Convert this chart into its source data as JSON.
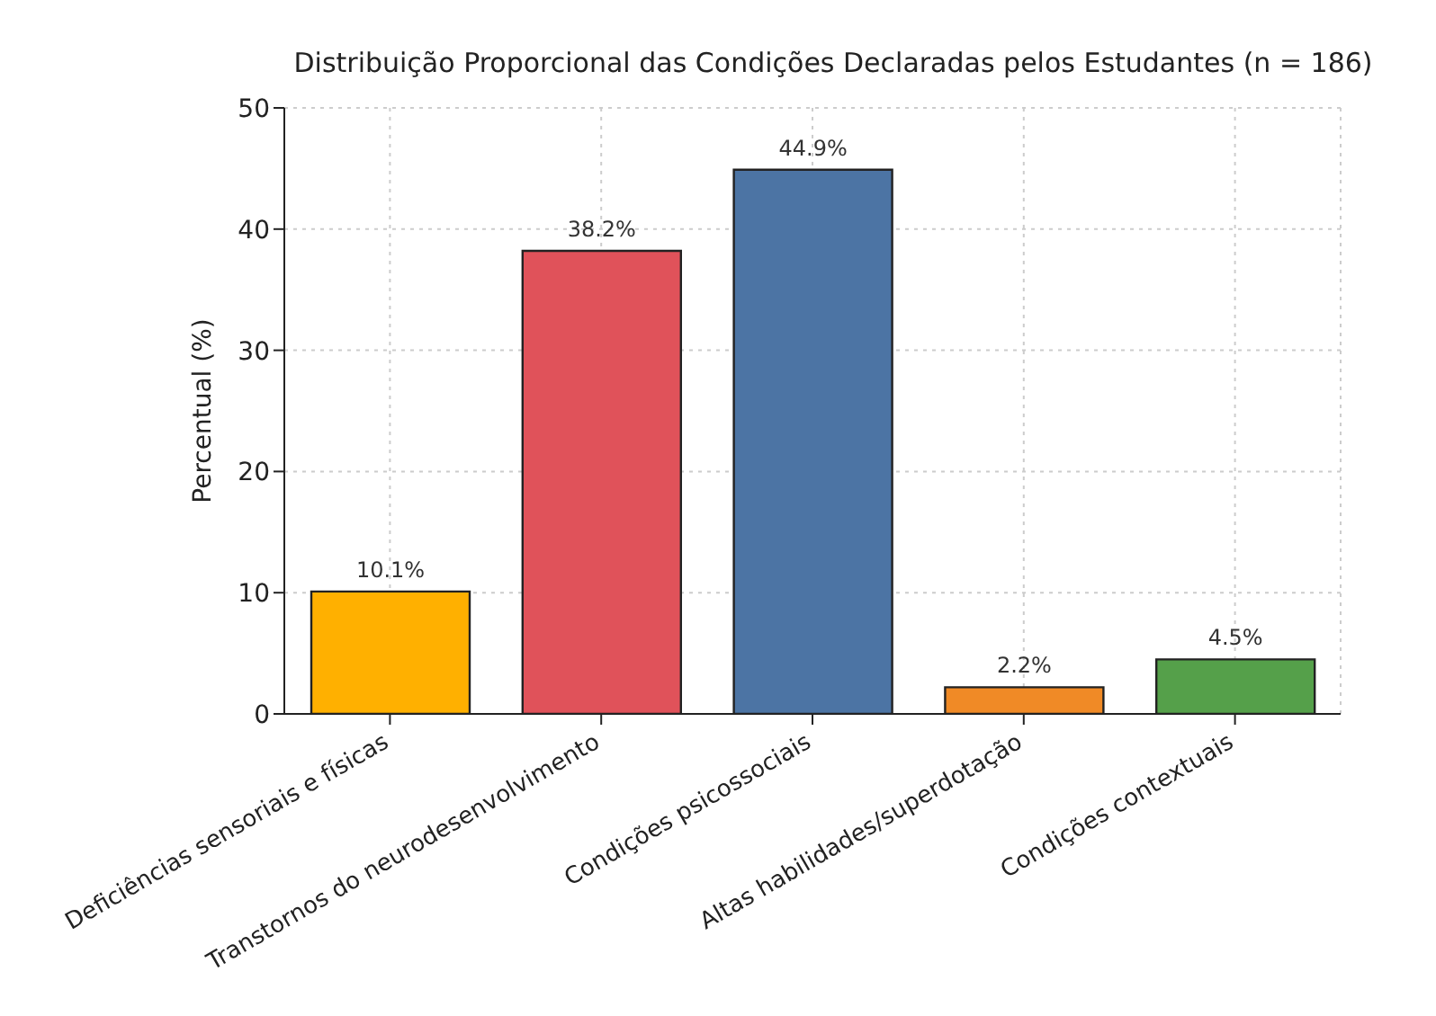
{
  "chart_data": {
    "type": "bar",
    "title": "Distribuição Proporcional das Condições Declaradas pelos Estudantes (n = 186)",
    "ylabel": "Percentual (%)",
    "categories": [
      "Deficiências sensoriais e físicas",
      "Transtornos do neurodesenvolvimento",
      "Condições psicossociais",
      "Altas habilidades/superdotação",
      "Condições contextuais"
    ],
    "values": [
      10.1,
      38.2,
      44.9,
      2.2,
      4.5
    ],
    "colors": [
      "#ffb000",
      "#e0525a",
      "#4c74a4",
      "#f08a26",
      "#55a04a"
    ],
    "value_labels": [
      "10.1%",
      "38.2%",
      "44.9%",
      "2.2%",
      "4.5%"
    ],
    "ylim": [
      0,
      50
    ],
    "yticks": [
      0,
      10,
      20,
      30,
      40,
      50
    ],
    "grid": true,
    "legend": false
  }
}
